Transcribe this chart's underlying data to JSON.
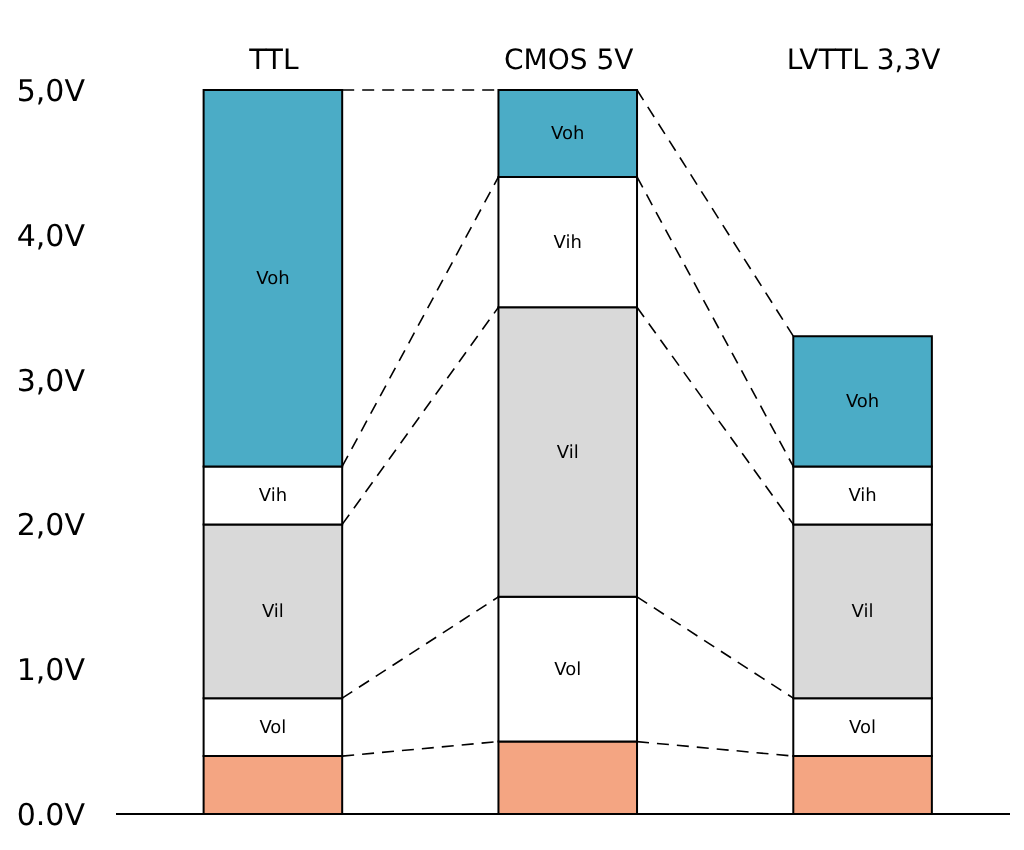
{
  "chart_data": {
    "type": "bar",
    "stacked": true,
    "categories": [
      "TTL",
      "CMOS 5V",
      "LVTTL 3,3V"
    ],
    "series": [
      {
        "color": "#f4a582",
        "values": [
          0.4,
          0.5,
          0.4
        ]
      },
      {
        "name": "Vol",
        "color": "#ffffff",
        "values": [
          0.4,
          1.0,
          0.4
        ]
      },
      {
        "name": "Vil",
        "color": "#d9d9d9",
        "values": [
          1.2,
          2.0,
          1.2
        ]
      },
      {
        "name": "Vih",
        "color": "#ffffff",
        "values": [
          0.4,
          0.9,
          0.4
        ]
      },
      {
        "name": "Voh",
        "color": "#4bacc6",
        "values": [
          2.6,
          0.6,
          0.9
        ]
      }
    ],
    "ylim": [
      0,
      5.0
    ],
    "yticks": [
      {
        "value": 0,
        "label": "0.0V"
      },
      {
        "value": 1,
        "label": "1,0V"
      },
      {
        "value": 2,
        "label": "2,0V"
      },
      {
        "value": 3,
        "label": "3,0V"
      },
      {
        "value": 4,
        "label": "4,0V"
      },
      {
        "value": 5,
        "label": "5,0V"
      }
    ],
    "line_style": "dashed",
    "grid": false,
    "legend": false
  }
}
